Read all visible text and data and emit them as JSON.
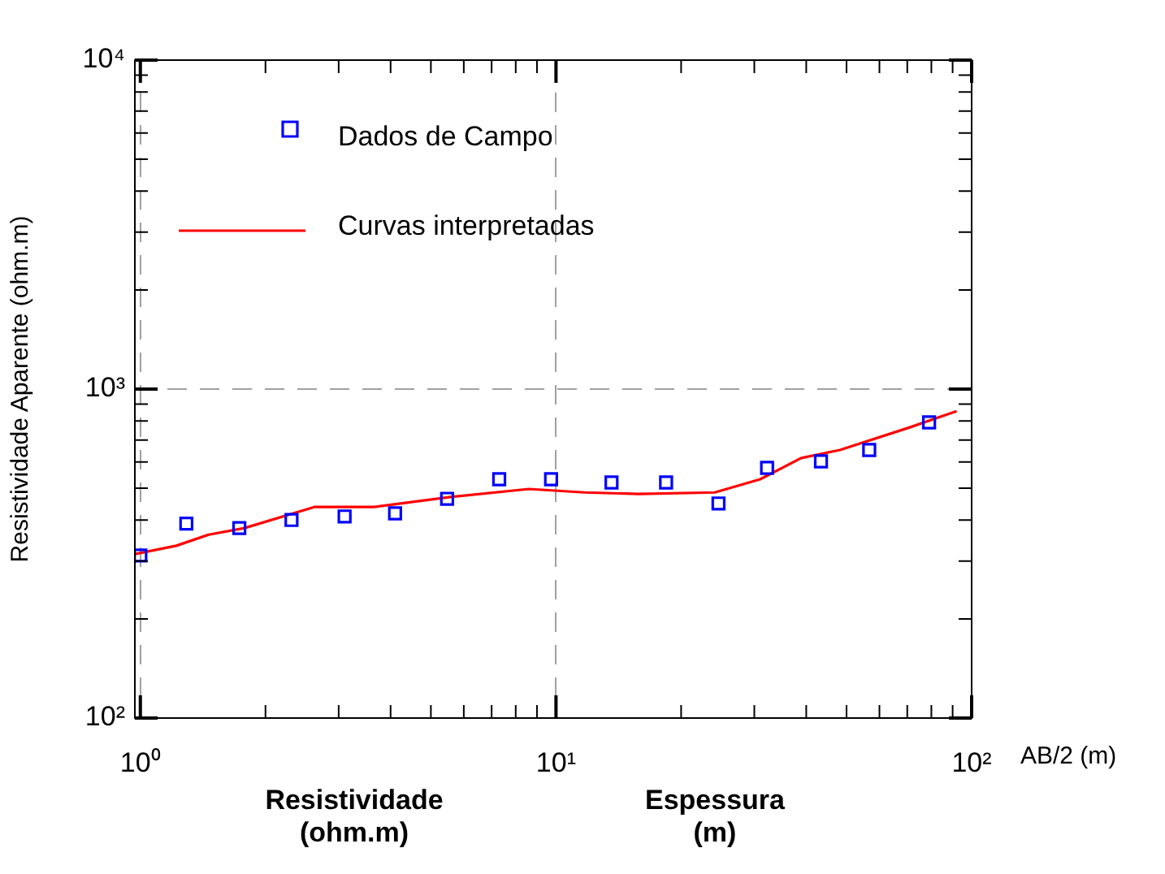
{
  "chart_data": {
    "type": "scatter",
    "xlabel": "AB/2 (m)",
    "ylabel": "Resistividade Aparente (ohm.m)",
    "log": "xy",
    "grid": true,
    "legend": "top left",
    "xlim": [
      0.97,
      100
    ],
    "ylim": [
      100,
      10000
    ],
    "xticks": [
      {
        "value": 1,
        "label": "10⁰"
      },
      {
        "value": 2,
        "label": null
      },
      {
        "value": 3,
        "label": null
      },
      {
        "value": 4,
        "label": null
      },
      {
        "value": 5,
        "label": null
      },
      {
        "value": 6,
        "label": null
      },
      {
        "value": 7,
        "label": null
      },
      {
        "value": 8,
        "label": null
      },
      {
        "value": 9,
        "label": null
      },
      {
        "value": 10,
        "label": "10¹"
      },
      {
        "value": 20,
        "label": null
      },
      {
        "value": 30,
        "label": null
      },
      {
        "value": 40,
        "label": null
      },
      {
        "value": 50,
        "label": null
      },
      {
        "value": 60,
        "label": null
      },
      {
        "value": 70,
        "label": null
      },
      {
        "value": 80,
        "label": null
      },
      {
        "value": 90,
        "label": null
      },
      {
        "value": 100,
        "label": "10²"
      }
    ],
    "yticks": [
      {
        "value": 100,
        "label": "10²"
      },
      {
        "value": 200,
        "label": null
      },
      {
        "value": 300,
        "label": null
      },
      {
        "value": 400,
        "label": null
      },
      {
        "value": 500,
        "label": null
      },
      {
        "value": 600,
        "label": null
      },
      {
        "value": 700,
        "label": null
      },
      {
        "value": 800,
        "label": null
      },
      {
        "value": 900,
        "label": null
      },
      {
        "value": 1000,
        "label": "10³"
      },
      {
        "value": 2000,
        "label": null
      },
      {
        "value": 3000,
        "label": null
      },
      {
        "value": 4000,
        "label": null
      },
      {
        "value": 5000,
        "label": null
      },
      {
        "value": 6000,
        "label": null
      },
      {
        "value": 7000,
        "label": null
      },
      {
        "value": 8000,
        "label": null
      },
      {
        "value": 9000,
        "label": null
      },
      {
        "value": 10000,
        "label": "10⁴"
      }
    ],
    "series": [
      {
        "name": "Dados de Campo",
        "marker": "square",
        "color": "#0000ff",
        "x": [
          1.0,
          1.29,
          1.73,
          2.31,
          3.1,
          4.1,
          5.47,
          7.3,
          9.73,
          13.6,
          18.4,
          24.6,
          32.2,
          43.4,
          56.7,
          79
        ],
        "values": [
          312,
          390,
          378,
          400,
          410,
          419,
          464,
          532,
          532,
          520,
          520,
          449,
          576,
          603,
          653,
          792
        ]
      },
      {
        "name": "Curvas interpretadas",
        "type": "line",
        "marker": "none",
        "line_style": "solid",
        "color": "#ff0000",
        "x": [
          0.97,
          1.22,
          1.46,
          1.78,
          2.62,
          3.65,
          5.57,
          8.6,
          11.7,
          15.8,
          24.1,
          31,
          38.9,
          48.2,
          71,
          92
        ],
        "values": [
          315,
          334,
          361,
          378,
          438,
          438,
          470,
          497,
          485,
          480,
          485,
          532,
          617,
          653,
          765,
          857
        ]
      }
    ],
    "annotations": [
      "Resistividade (ohm.m)",
      "Espessura (m)"
    ]
  }
}
